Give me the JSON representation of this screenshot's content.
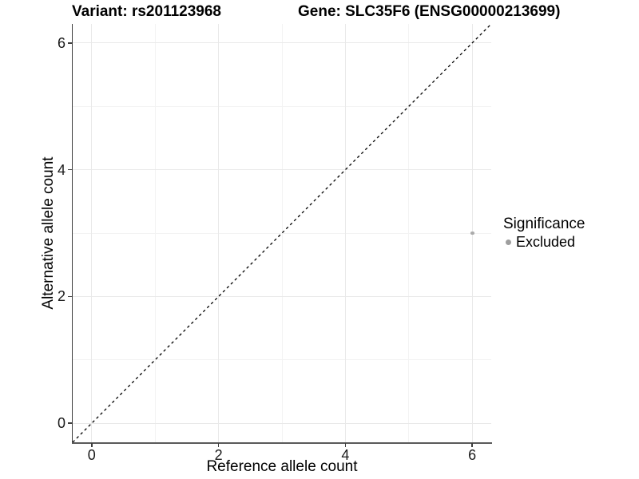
{
  "chart_data": {
    "type": "scatter",
    "titles": {
      "variant": "Variant: rs201123968",
      "gene": "Gene: SLC35F6 (ENSG00000213699)"
    },
    "xlabel": "Reference allele count",
    "ylabel": "Alternative allele count",
    "xlim": [
      -0.3,
      6.3
    ],
    "ylim": [
      -0.3,
      6.3
    ],
    "x_major_ticks": [
      0,
      2,
      4,
      6
    ],
    "y_major_ticks": [
      0,
      2,
      4,
      6
    ],
    "x_minor_gridlines": [
      1,
      3,
      5
    ],
    "y_minor_gridlines": [
      1,
      3,
      5
    ],
    "grid": "major-and-minor",
    "identity_line": {
      "style": "dashed",
      "x1": -0.3,
      "y1": -0.3,
      "x2": 6.3,
      "y2": 6.3,
      "color": "#000000"
    },
    "series": [
      {
        "name": "Excluded",
        "color": "#ababab",
        "point_radius": 2.4,
        "points": [
          {
            "x": 6,
            "y": 3
          }
        ]
      }
    ],
    "legend": {
      "title": "Significance",
      "position": "right",
      "entries": [
        {
          "label": "Excluded",
          "color": "#9e9e9e"
        }
      ]
    },
    "colors": {
      "background": "#ffffff",
      "grid_major": "#e9e9e9",
      "grid_minor": "#f3f3f3",
      "axis_line": "#3d3d3d",
      "tick_label": "#1a1a1a"
    }
  }
}
